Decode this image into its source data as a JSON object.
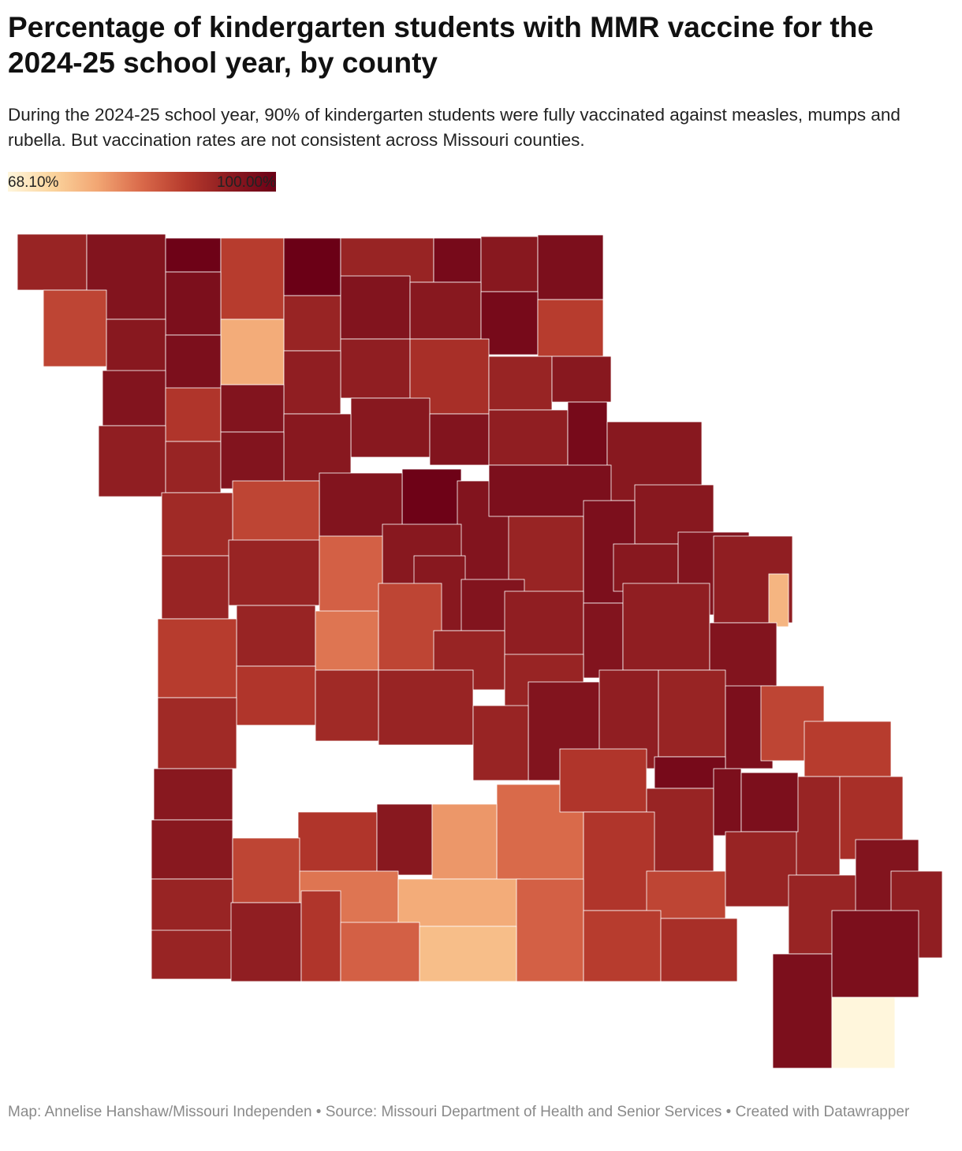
{
  "chart_data": {
    "type": "choropleth",
    "title": "Percentage of kindergarten students with MMR vaccine for the 2024-25 school year, by county",
    "subtitle": "During the 2024-25 school year, 90% of kindergarten students were fully vaccinated against measles, mumps and rubella. But vaccination rates are not consistent across Missouri counties.",
    "colorscale": {
      "stops": [
        {
          "value": 68.1,
          "label": "68.10%"
        },
        {
          "value": 100,
          "label": "100.00%"
        }
      ],
      "colors": [
        "#fff6dc",
        "#fbd49d",
        "#f2a673",
        "#d9694a",
        "#b5392c",
        "#8a1a20",
        "#6b0016"
      ]
    },
    "values": [
      93,
      96,
      99.5,
      89,
      100,
      93,
      98,
      95,
      97,
      88,
      97,
      93,
      96,
      95,
      98,
      89,
      78,
      95,
      97,
      94,
      91,
      93,
      95,
      94,
      96,
      90,
      96,
      95,
      96,
      94,
      98,
      95,
      94,
      93,
      96,
      95,
      99.5,
      96,
      97,
      95,
      96,
      88,
      92,
      95,
      93,
      97,
      95,
      96,
      94,
      77,
      93,
      85,
      93,
      95,
      96,
      94,
      96,
      94,
      96,
      93,
      83,
      88,
      93,
      93,
      96,
      94,
      93,
      97,
      88,
      89,
      90,
      92,
      93,
      92,
      84,
      90,
      98,
      93,
      97,
      89,
      93,
      91,
      97,
      95,
      93,
      90,
      95,
      80,
      90,
      88,
      93,
      93,
      96,
      94,
      95,
      88,
      83,
      78,
      85,
      89,
      91,
      93,
      93,
      94,
      90,
      85,
      76,
      97,
      68.1,
      97
    ],
    "footer": "Map: Annelise Hanshaw/Missouri Independen • Source: Missouri Department of Health and Senior Services • Created with Datawrapper"
  }
}
